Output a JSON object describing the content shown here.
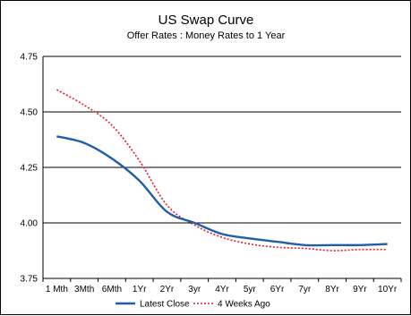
{
  "chart_data": {
    "type": "line",
    "title": "US Swap Curve",
    "subtitle": "Offer Rates : Money Rates to 1 Year",
    "categories": [
      "1 Mth",
      "3Mth",
      "6Mth",
      "1Yr",
      "2Yr",
      "3yr",
      "4Yr",
      "5yr",
      "6Yr",
      "7yr",
      "8Yr",
      "9Yr",
      "10Yr"
    ],
    "ylim": [
      3.75,
      4.75
    ],
    "yticks": [
      "4.75",
      "4.50",
      "4.25",
      "4.00",
      "3.75"
    ],
    "grid": true,
    "legend_position": "bottom",
    "series": [
      {
        "name": "Latest Close",
        "color": "#1f5fa8",
        "style": "solid",
        "values": [
          4.39,
          4.36,
          4.29,
          4.19,
          4.05,
          4.0,
          3.95,
          3.93,
          3.915,
          3.9,
          3.9,
          3.9,
          3.905
        ]
      },
      {
        "name": "4 Weeks Ago",
        "color": "#e8192c",
        "style": "dotted",
        "values": [
          4.6,
          4.53,
          4.44,
          4.28,
          4.08,
          3.99,
          3.935,
          3.905,
          3.89,
          3.885,
          3.875,
          3.88,
          3.88
        ]
      }
    ]
  }
}
